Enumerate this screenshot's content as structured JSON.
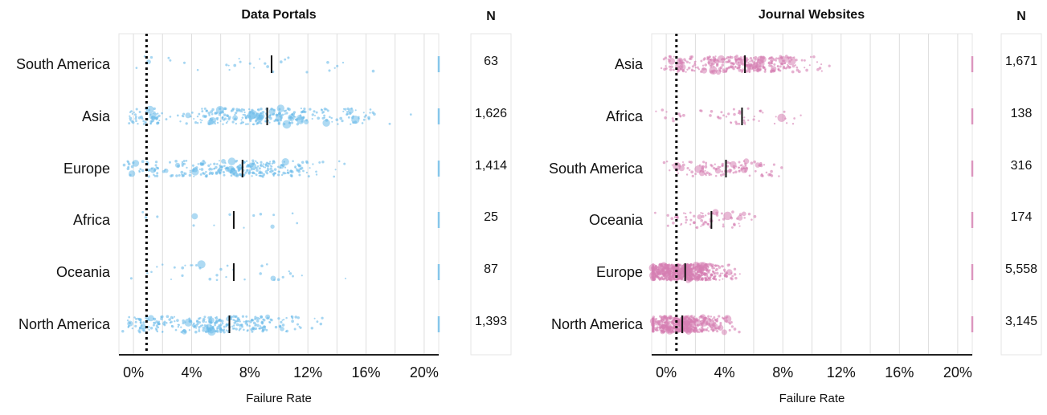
{
  "chart_data": [
    {
      "type": "scatter",
      "title": "Data Portals",
      "xlabel": "Failure Rate",
      "xlim": [
        -1,
        21
      ],
      "x_ticks": [
        "0%",
        "4%",
        "8%",
        "12%",
        "16%",
        "20%"
      ],
      "x_tick_values": [
        0,
        4,
        8,
        12,
        16,
        20
      ],
      "reference_line_x": 0.9,
      "point_color": "#6bbbe9",
      "categories": [
        "South America",
        "Asia",
        "Europe",
        "Africa",
        "Oceania",
        "North America"
      ],
      "medians": [
        9.5,
        9.2,
        7.5,
        6.9,
        6.9,
        6.6
      ],
      "n_header": "N",
      "n_labels": [
        "63",
        "1,626",
        "1,414",
        "25",
        "87",
        "1,393"
      ],
      "grid": true
    },
    {
      "type": "scatter",
      "title": "Journal Websites",
      "xlabel": "Failure Rate",
      "xlim": [
        -1,
        21
      ],
      "x_ticks": [
        "0%",
        "4%",
        "8%",
        "12%",
        "16%",
        "20%"
      ],
      "x_tick_values": [
        0,
        4,
        8,
        12,
        16,
        20
      ],
      "reference_line_x": 0.7,
      "point_color": "#d67fb2",
      "categories": [
        "Asia",
        "Africa",
        "South America",
        "Oceania",
        "Europe",
        "North America"
      ],
      "medians": [
        5.4,
        5.2,
        4.1,
        3.1,
        1.3,
        1.1
      ],
      "n_header": "N",
      "n_labels": [
        "1,671",
        "138",
        "316",
        "174",
        "5,558",
        "3,145"
      ],
      "grid": true
    }
  ]
}
